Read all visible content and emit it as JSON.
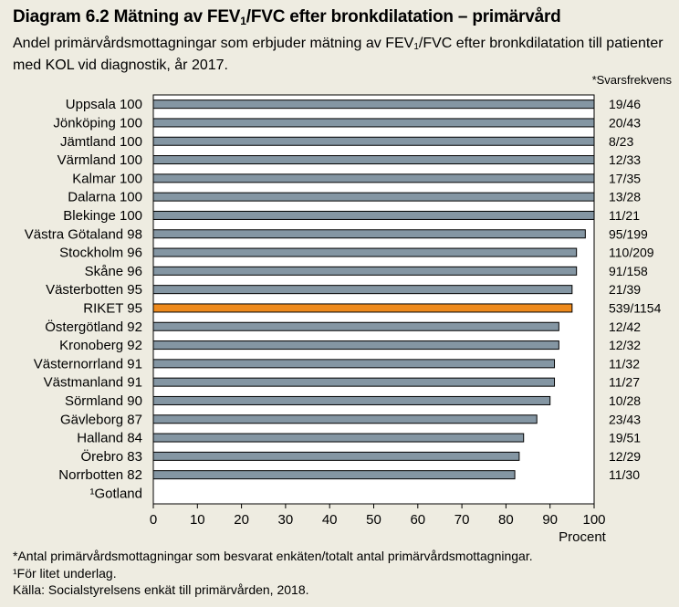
{
  "header": {
    "title_pre": "Diagram 6.2 Mätning av FEV",
    "title_sub": "1",
    "title_post": "/FVC efter bronkdilatation – primärvård",
    "subtitle_pre": "Andel primärvårdsmottagningar som erbjuder mätning av FEV",
    "subtitle_sub": "1",
    "subtitle_post": "/FVC efter bronkdilatation till patienter med KOL vid diagnostik, år 2017."
  },
  "response_header": "*Svarsfrekvens",
  "colors": {
    "bar": "#8496a3",
    "highlight": "#ee8a1c",
    "background": "#eeece1",
    "plot": "#ffffff"
  },
  "chart_data": {
    "type": "bar",
    "orientation": "horizontal",
    "categories": [
      "Uppsala",
      "Jönköping",
      "Jämtland",
      "Värmland",
      "Kalmar",
      "Dalarna",
      "Blekinge",
      "Västra Götaland",
      "Stockholm",
      "Skåne",
      "Västerbotten",
      "RIKET",
      "Östergötland",
      "Kronoberg",
      "Västernorrland",
      "Västmanland",
      "Sörmland",
      "Gävleborg",
      "Halland",
      "Örebro",
      "Norrbotten",
      "¹Gotland"
    ],
    "values": [
      100,
      100,
      100,
      100,
      100,
      100,
      100,
      98,
      96,
      96,
      95,
      95,
      92,
      92,
      91,
      91,
      90,
      87,
      84,
      83,
      82,
      null
    ],
    "value_labels": [
      "100",
      "100",
      "100",
      "100",
      "100",
      "100",
      "100",
      "98",
      "96",
      "96",
      "95",
      "95",
      "92",
      "92",
      "91",
      "91",
      "90",
      "87",
      "84",
      "83",
      "82",
      ""
    ],
    "response_rates": [
      "19/46",
      "20/43",
      "8/23",
      "12/33",
      "17/35",
      "13/28",
      "11/21",
      "95/199",
      "110/209",
      "91/158",
      "21/39",
      "539/1154",
      "12/42",
      "12/32",
      "11/32",
      "11/27",
      "10/28",
      "23/43",
      "19/51",
      "12/29",
      "11/30",
      ""
    ],
    "highlight": "RIKET",
    "xlim": [
      0,
      100
    ],
    "xticks": [
      "0",
      "10",
      "20",
      "30",
      "40",
      "50",
      "60",
      "70",
      "80",
      "90",
      "100"
    ],
    "xlabel": "Procent",
    "title": "Diagram 6.2 Mätning av FEV1/FVC efter bronkdilatation – primärvård"
  },
  "footnotes": {
    "note1": "*Antal primärvårdsmottagningar som besvarat enkäten/totalt antal primärvårdsmottagningar.",
    "note2": "¹För litet underlag.",
    "source": "Källa:  Socialstyrelsens enkät till primärvården, 2018."
  }
}
